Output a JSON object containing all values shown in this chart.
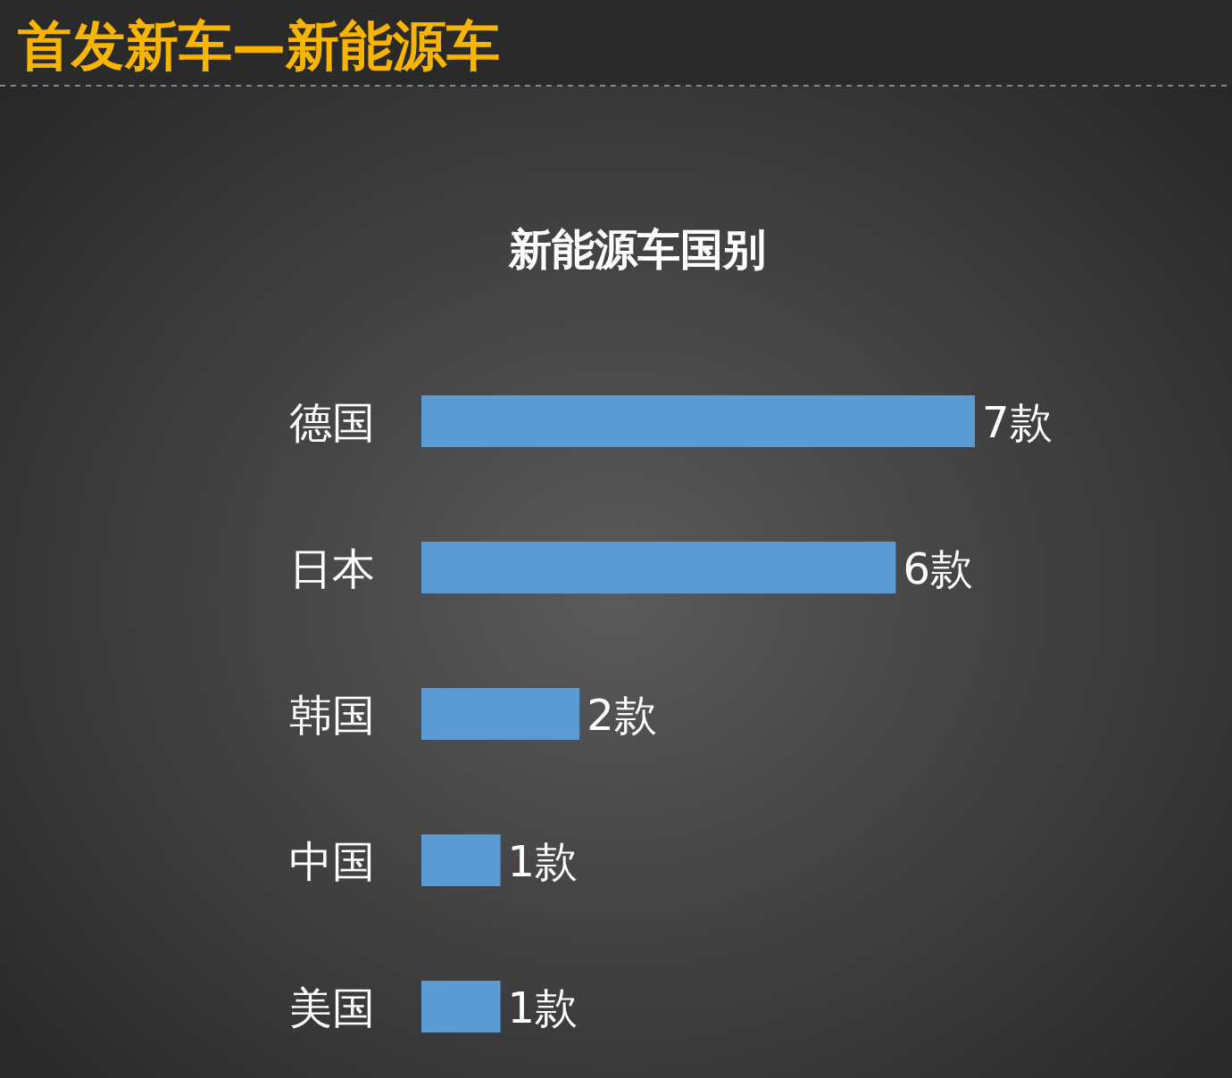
{
  "chart_data": {
    "type": "bar",
    "orientation": "horizontal",
    "title": "首发新车—新能源车",
    "subtitle": "新能源车国别",
    "categories": [
      "德国",
      "日本",
      "韩国",
      "中国",
      "美国"
    ],
    "values": [
      7,
      6,
      2,
      1,
      1
    ],
    "value_labels": [
      "7款",
      "6款",
      "2款",
      "1款",
      "1款"
    ],
    "color": "#5b9bd5"
  }
}
